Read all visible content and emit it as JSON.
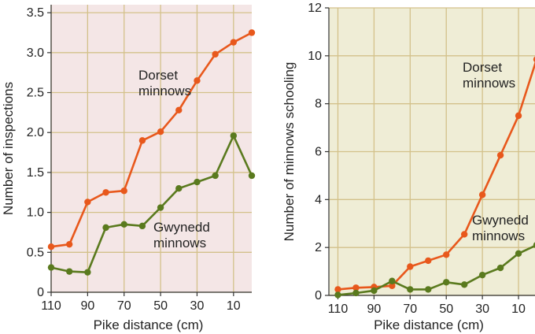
{
  "chart_data": [
    {
      "type": "line",
      "xlabel": "Pike distance (cm)",
      "ylabel": "Number of inspections",
      "xlim": [
        110,
        0
      ],
      "ylim": [
        0,
        3.6
      ],
      "x_ticks": [
        110,
        90,
        70,
        50,
        30,
        10
      ],
      "y_ticks": [
        0,
        0.5,
        1.0,
        1.5,
        2.0,
        2.5,
        3.0,
        3.5
      ],
      "y_tick_labels": [
        "0",
        "0.5",
        "1.0",
        "1.5",
        "2.0",
        "2.5",
        "3.0",
        "3.5"
      ],
      "background": "#f4e6e6",
      "grid": true,
      "series": [
        {
          "label_lines": [
            "Dorset",
            "minnows"
          ],
          "color": "#e8581c",
          "x": [
            110,
            100,
            90,
            80,
            70,
            60,
            50,
            40,
            30,
            20,
            10,
            0
          ],
          "y": [
            0.57,
            0.6,
            1.13,
            1.25,
            1.27,
            1.9,
            2.01,
            2.28,
            2.65,
            2.98,
            3.13,
            3.25
          ]
        },
        {
          "label_lines": [
            "Gwynedd",
            "minnows"
          ],
          "color": "#5a7a1e",
          "x": [
            110,
            100,
            90,
            80,
            70,
            60,
            50,
            40,
            30,
            20,
            10,
            0
          ],
          "y": [
            0.31,
            0.26,
            0.25,
            0.81,
            0.85,
            0.83,
            1.06,
            1.3,
            1.38,
            1.46,
            1.96,
            1.46
          ]
        }
      ]
    },
    {
      "type": "line",
      "xlabel": "Pike distance (cm)",
      "ylabel": "Number of minnows schooling",
      "xlim": [
        115,
        0
      ],
      "ylim": [
        0,
        12
      ],
      "x_ticks": [
        110,
        90,
        70,
        50,
        30,
        10
      ],
      "y_ticks": [
        0,
        2,
        4,
        6,
        8,
        10,
        12
      ],
      "y_tick_labels": [
        "0",
        "2",
        "4",
        "6",
        "8",
        "10",
        "12"
      ],
      "background": "#efedd6",
      "grid": true,
      "series": [
        {
          "label_lines": [
            "Dorset",
            "minnows"
          ],
          "color": "#e8581c",
          "x": [
            110,
            100,
            90,
            80,
            70,
            60,
            50,
            40,
            30,
            20,
            10,
            0
          ],
          "y": [
            0.25,
            0.32,
            0.35,
            0.4,
            1.2,
            1.45,
            1.7,
            2.55,
            4.2,
            5.85,
            7.5,
            9.85
          ]
        },
        {
          "label_lines": [
            "Gwynedd",
            "minnows"
          ],
          "color": "#5a7a1e",
          "x": [
            110,
            100,
            90,
            80,
            70,
            60,
            50,
            40,
            30,
            20,
            10,
            0
          ],
          "y": [
            0.02,
            0.1,
            0.2,
            0.6,
            0.25,
            0.25,
            0.55,
            0.45,
            0.85,
            1.15,
            1.75,
            2.1
          ]
        }
      ]
    }
  ]
}
